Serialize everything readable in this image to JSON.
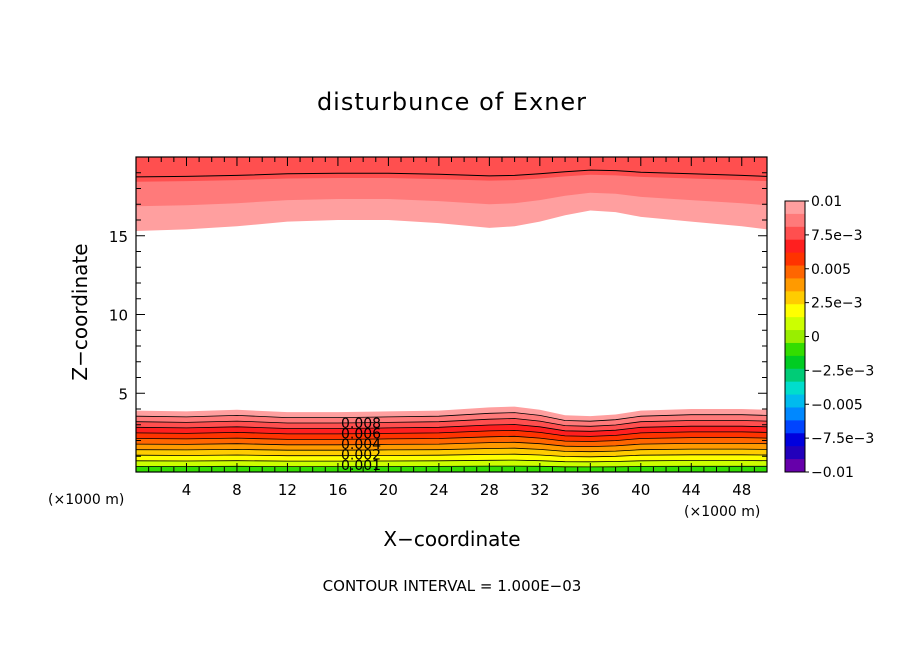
{
  "chart_data": {
    "type": "contour",
    "title": "disturbunce of Exner",
    "xlabel": "X−coordinate",
    "ylabel": "Z−coordinate",
    "x_unit": "(×1000 m)",
    "y_unit": "(×1000 m)",
    "xlim": [
      0,
      50
    ],
    "ylim": [
      0,
      20
    ],
    "x_ticks": [
      4,
      8,
      12,
      16,
      20,
      24,
      28,
      32,
      36,
      40,
      44,
      48
    ],
    "y_ticks": [
      5,
      10,
      15
    ],
    "footer": "CONTOUR INTERVAL = 1.000E−03",
    "colorbar": {
      "labels": [
        "0.01",
        "7.5e−3",
        "0.005",
        "2.5e−3",
        "0",
        "−2.5e−3",
        "−0.005",
        "−7.5e−3",
        "−0.01"
      ],
      "colors": [
        "#ff9f9f",
        "#ff7a7a",
        "#ff4f4f",
        "#ff1f1f",
        "#ff3300",
        "#ff6600",
        "#ff9a00",
        "#ffcc00",
        "#ffff00",
        "#ccff00",
        "#99ee00",
        "#33dd00",
        "#00cc22",
        "#00cc77",
        "#00ddcc",
        "#00bbee",
        "#0088ff",
        "#0044ff",
        "#0000dd",
        "#2200bb",
        "#6600aa"
      ]
    },
    "contour_labels": [
      "0.008",
      "0.006",
      "0.004",
      "0.002",
      "0.001"
    ],
    "lower_bands": {
      "x": [
        0,
        4,
        8,
        12,
        16,
        20,
        24,
        28,
        30,
        32,
        34,
        36,
        38,
        40,
        44,
        48,
        50
      ],
      "top_y": [
        3.9,
        3.85,
        3.95,
        3.8,
        3.8,
        3.85,
        3.9,
        4.1,
        4.15,
        3.95,
        3.6,
        3.55,
        3.65,
        3.9,
        4.0,
        4.0,
        3.95
      ],
      "colors": [
        "#ff9f9f",
        "#ff7a7a",
        "#ff4f4f",
        "#ff1f1f",
        "#ff3300",
        "#ff6600",
        "#ff9a00",
        "#ffcc00",
        "#ffff00",
        "#ccff00",
        "#33dd00"
      ]
    },
    "upper_bands": {
      "x": [
        0,
        4,
        8,
        12,
        16,
        20,
        24,
        28,
        30,
        32,
        34,
        36,
        38,
        40,
        44,
        48,
        50
      ],
      "bottom_y": [
        15.3,
        15.4,
        15.6,
        15.9,
        16.0,
        16.0,
        15.8,
        15.5,
        15.6,
        15.9,
        16.3,
        16.6,
        16.5,
        16.2,
        15.9,
        15.6,
        15.4
      ],
      "colors": [
        "#ff9f9f",
        "#ff7a7a",
        "#ff4f4f"
      ]
    }
  }
}
